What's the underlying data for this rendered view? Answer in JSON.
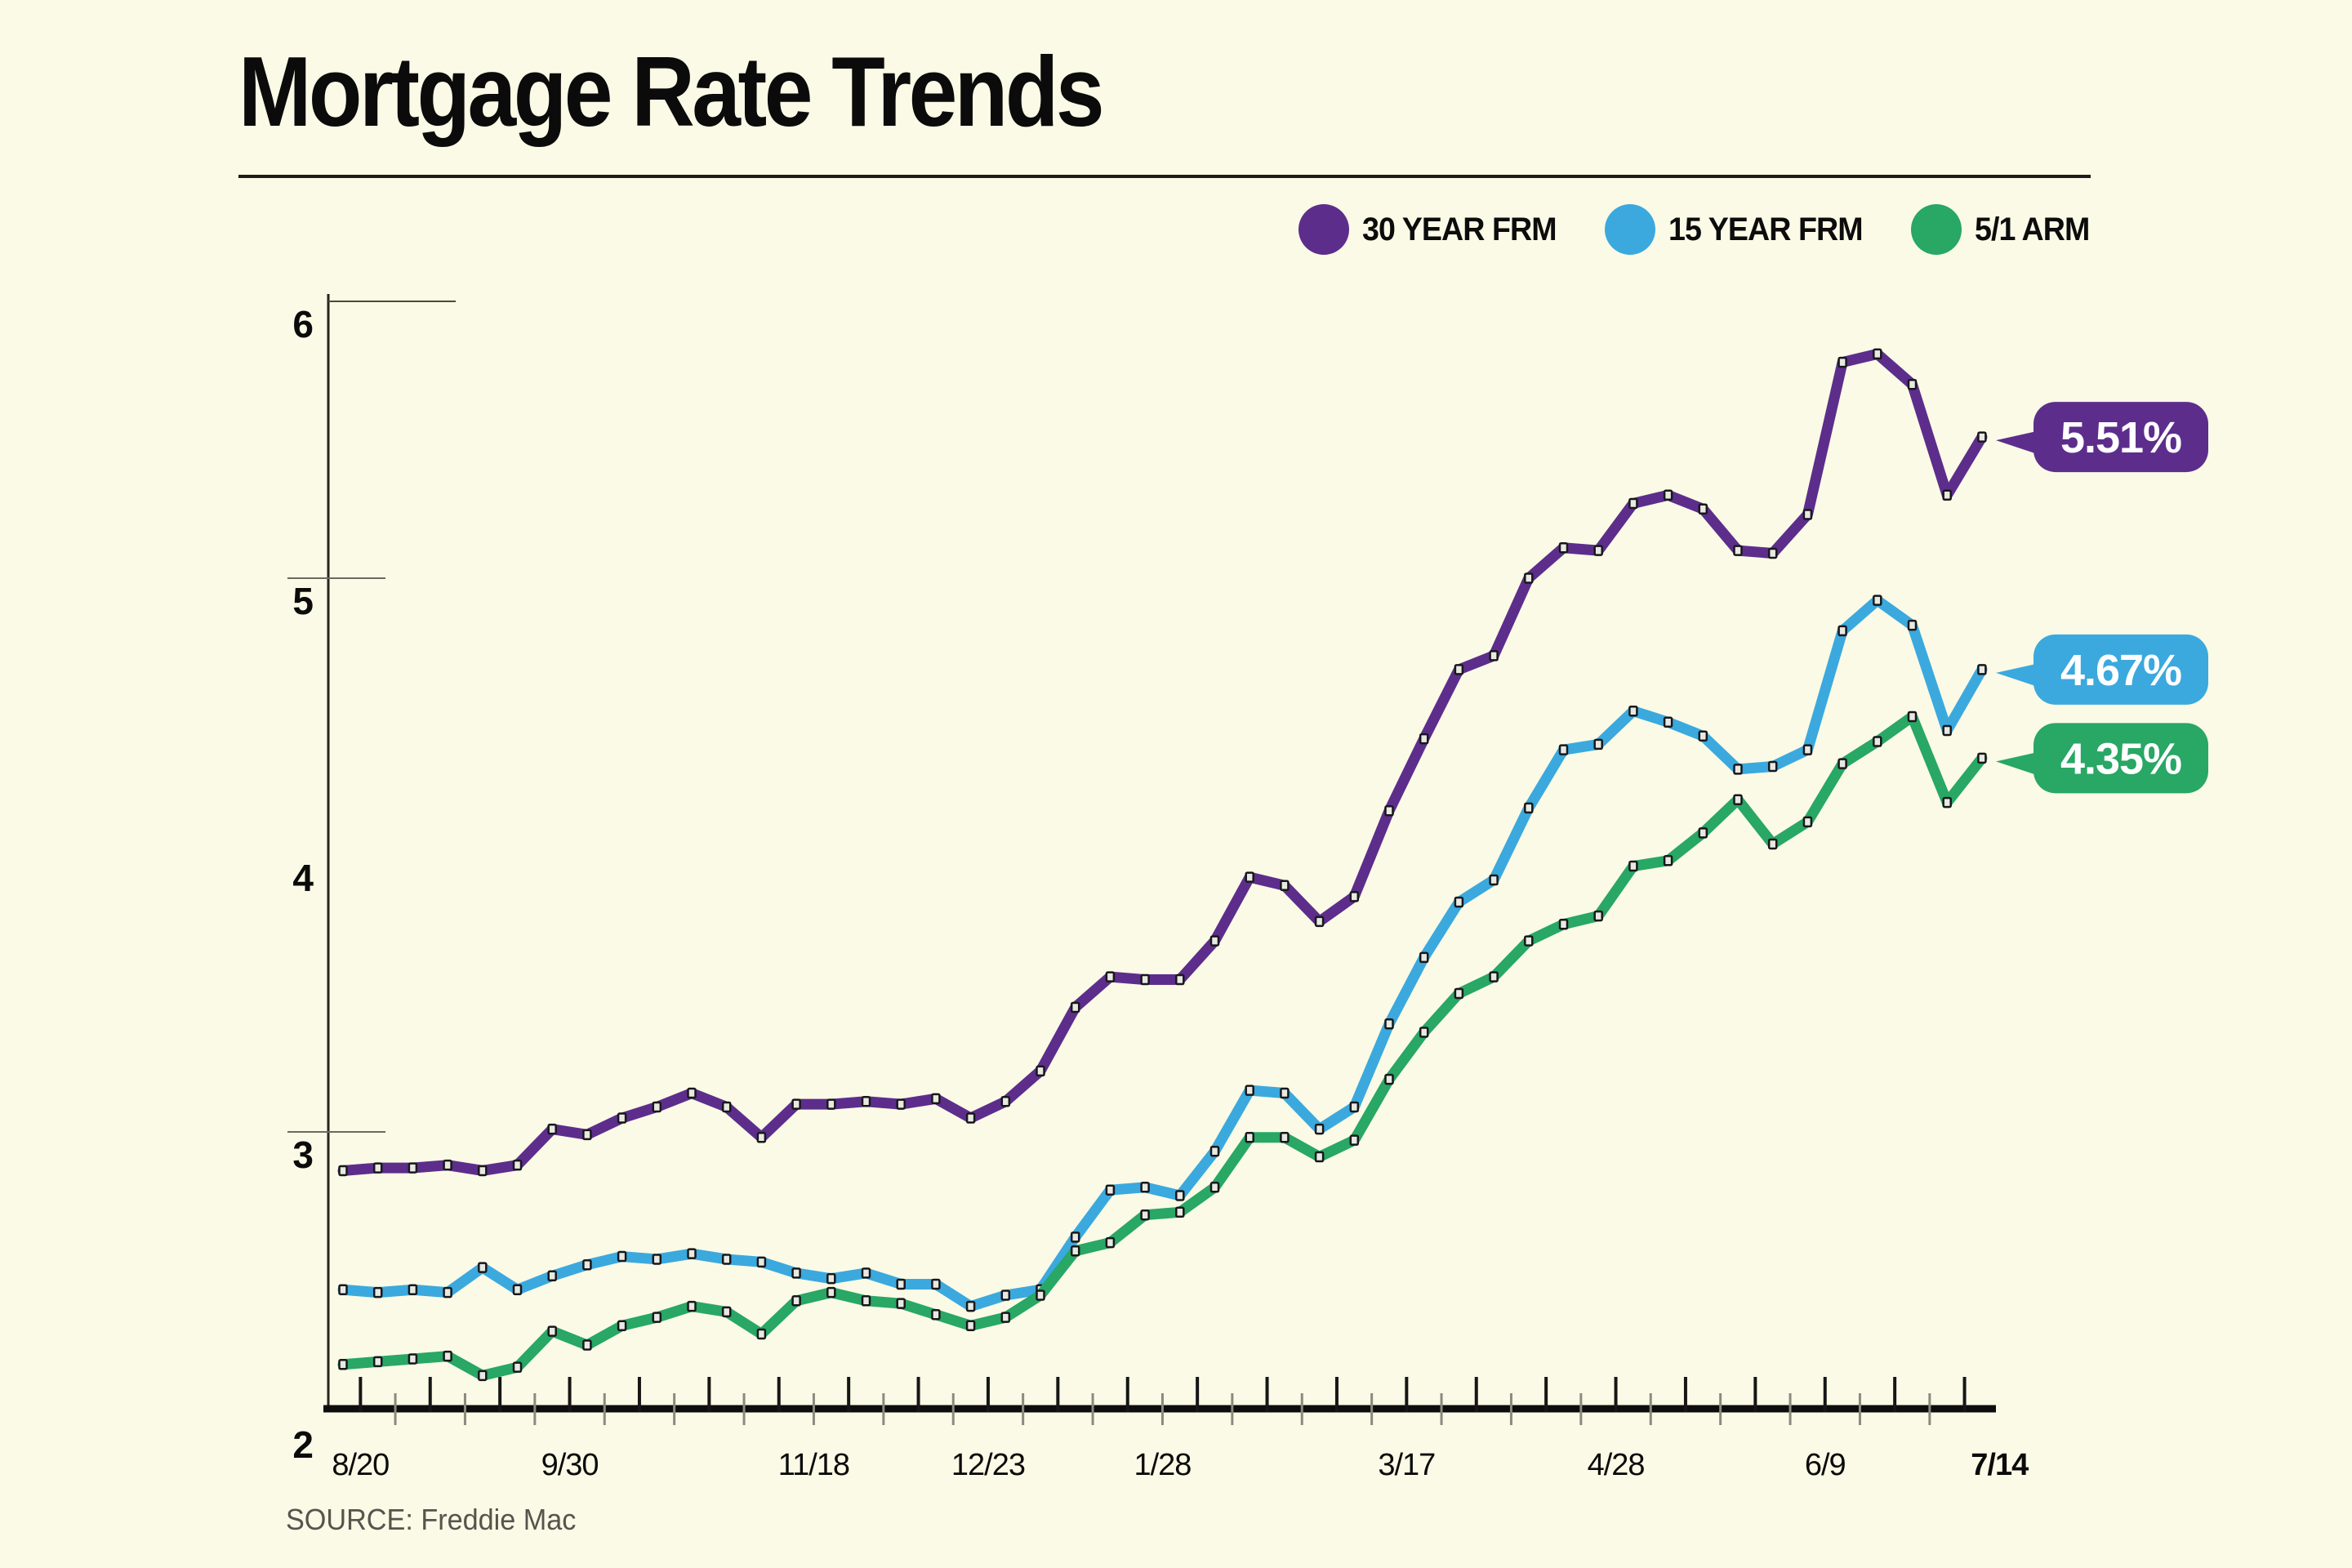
{
  "page": {
    "background": "#fafae6"
  },
  "header": {
    "title": "Mortgage Rate Trends"
  },
  "legend": [
    {
      "label": "30 YEAR FRM",
      "color": "#5d2d8c"
    },
    {
      "label": "15 YEAR FRM",
      "color": "#3ba9de"
    },
    {
      "label": "5/1 ARM",
      "color": "#28a765"
    }
  ],
  "source": {
    "text": "SOURCE: Freddie Mac"
  },
  "chart_data": {
    "type": "line",
    "title": "Mortgage Rate Trends",
    "source": "SOURCE: Freddie Mac",
    "grid": false,
    "legend_position": "top-right",
    "y_axis": {
      "min": 2,
      "max": 6,
      "ticks": [
        2,
        3,
        4,
        5,
        6
      ]
    },
    "x_axis": {
      "unit": "week",
      "points": 48,
      "tick_labels": [
        {
          "week": 0,
          "label": "8/20"
        },
        {
          "week": 6,
          "label": "9/30"
        },
        {
          "week": 13,
          "label": "11/18"
        },
        {
          "week": 18,
          "label": "12/23"
        },
        {
          "week": 23,
          "label": "1/28"
        },
        {
          "week": 30,
          "label": "3/17"
        },
        {
          "week": 36,
          "label": "4/28"
        },
        {
          "week": 42,
          "label": "6/9"
        },
        {
          "week": 47,
          "label": "7/14",
          "bold": true
        }
      ]
    },
    "series": [
      {
        "name": "30 YEAR FRM",
        "color": "#5d2d8c",
        "end_label": "5.51%",
        "values": [
          2.86,
          2.87,
          2.87,
          2.88,
          2.86,
          2.88,
          3.01,
          2.99,
          3.05,
          3.09,
          3.14,
          3.09,
          2.98,
          3.1,
          3.1,
          3.11,
          3.1,
          3.12,
          3.05,
          3.11,
          3.22,
          3.45,
          3.56,
          3.55,
          3.55,
          3.69,
          3.92,
          3.89,
          3.76,
          3.85,
          4.16,
          4.42,
          4.67,
          4.72,
          5.0,
          5.11,
          5.1,
          5.27,
          5.3,
          5.25,
          5.1,
          5.09,
          5.23,
          5.78,
          5.81,
          5.7,
          5.3,
          5.51
        ]
      },
      {
        "name": "15 YEAR FRM",
        "color": "#3ba9de",
        "end_label": "4.67%",
        "values": [
          2.43,
          2.42,
          2.43,
          2.42,
          2.51,
          2.43,
          2.48,
          2.52,
          2.55,
          2.54,
          2.56,
          2.54,
          2.53,
          2.49,
          2.47,
          2.49,
          2.45,
          2.45,
          2.37,
          2.41,
          2.43,
          2.62,
          2.79,
          2.8,
          2.77,
          2.93,
          3.15,
          3.14,
          3.01,
          3.09,
          3.39,
          3.63,
          3.83,
          3.91,
          4.17,
          4.38,
          4.4,
          4.52,
          4.48,
          4.43,
          4.31,
          4.32,
          4.38,
          4.81,
          4.92,
          4.83,
          4.45,
          4.67
        ]
      },
      {
        "name": "5/1 ARM",
        "color": "#28a765",
        "end_label": "4.35%",
        "values": [
          2.16,
          2.17,
          2.18,
          2.19,
          2.12,
          2.15,
          2.28,
          2.23,
          2.3,
          2.33,
          2.37,
          2.35,
          2.27,
          2.39,
          2.42,
          2.39,
          2.38,
          2.34,
          2.3,
          2.33,
          2.41,
          2.57,
          2.6,
          2.7,
          2.71,
          2.8,
          2.98,
          2.98,
          2.91,
          2.97,
          3.19,
          3.36,
          3.5,
          3.56,
          3.69,
          3.75,
          3.78,
          3.96,
          3.98,
          4.08,
          4.2,
          4.04,
          4.12,
          4.33,
          4.41,
          4.5,
          4.19,
          4.35
        ]
      }
    ]
  }
}
